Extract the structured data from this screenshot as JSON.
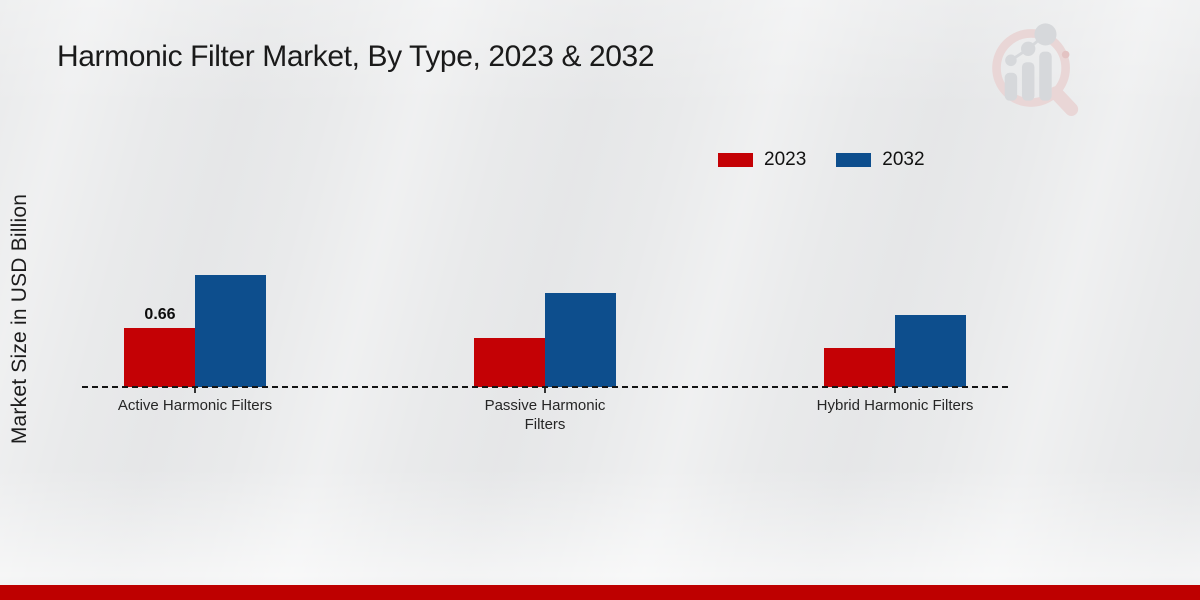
{
  "branding": {
    "watermark_icon": "mrfr-magnifier-bar-chart-logo",
    "bottom_bar_color": "#be0000"
  },
  "chart_data": {
    "type": "bar",
    "title": "Harmonic Filter Market, By Type, 2023 & 2032",
    "xlabel": "",
    "ylabel": "Market Size in USD Billion",
    "categories": [
      "Active Harmonic Filters",
      "Passive Harmonic Filters",
      "Hybrid Harmonic Filters"
    ],
    "series": [
      {
        "name": "2023",
        "color": "#c40105",
        "values": [
          0.66,
          0.55,
          0.44
        ]
      },
      {
        "name": "2032",
        "color": "#0d4e8d",
        "values": [
          1.25,
          1.05,
          0.8
        ]
      }
    ],
    "data_labels": [
      {
        "series_index": 0,
        "category_index": 0,
        "text": "0.66"
      }
    ],
    "ylim": [
      0,
      1.4
    ],
    "grid": false,
    "legend_position": "top-right",
    "baseline_style": "dashed",
    "y_ticks_visible": false
  }
}
